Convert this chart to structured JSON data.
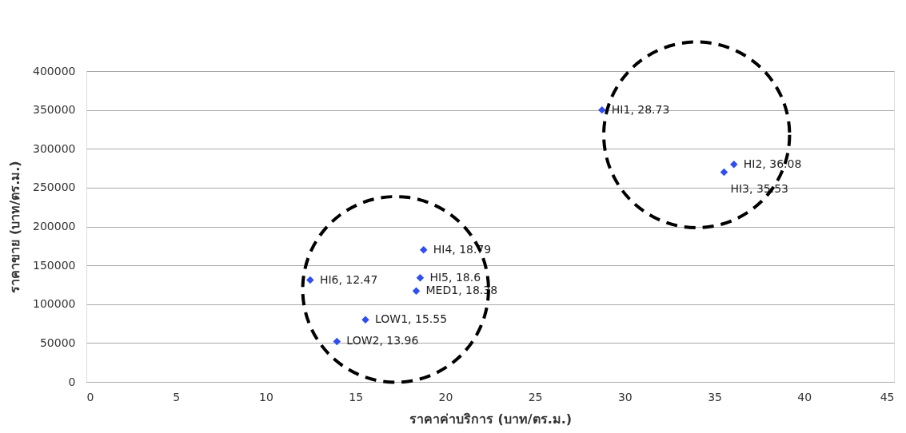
{
  "chart_data": {
    "type": "scatter",
    "xlabel": "ราคาค่าบริการ (บาท/ตร.ม.)",
    "ylabel": "ราคาขาย (บาท/ตร.ม.)",
    "x": [
      28.73,
      36.08,
      35.53,
      18.79,
      18.6,
      18.38,
      12.47,
      15.55,
      13.96
    ],
    "series": [
      {
        "color": "#2b4cff",
        "values": [
          350000,
          280000,
          270000,
          170000,
          134000,
          117000,
          131000,
          80000,
          52000
        ],
        "value_labels": [
          "HI1, 28.73",
          "HI2, 36.08",
          "HI3, 35.53",
          "HI4, 18.79",
          "HI5, 18.6",
          "MED1, 18.38",
          "HI6, 12.47",
          "LOW1, 15.55",
          "LOW2, 13.96"
        ]
      }
    ],
    "xlim": [
      0,
      45
    ],
    "xticks": [
      0,
      5,
      10,
      15,
      20,
      25,
      30,
      35,
      40,
      45
    ],
    "ylim": [
      0,
      400000
    ],
    "yticks": [
      0,
      50000,
      100000,
      150000,
      200000,
      250000,
      300000,
      350000,
      400000
    ],
    "grid": "y",
    "marker": "diamond"
  }
}
